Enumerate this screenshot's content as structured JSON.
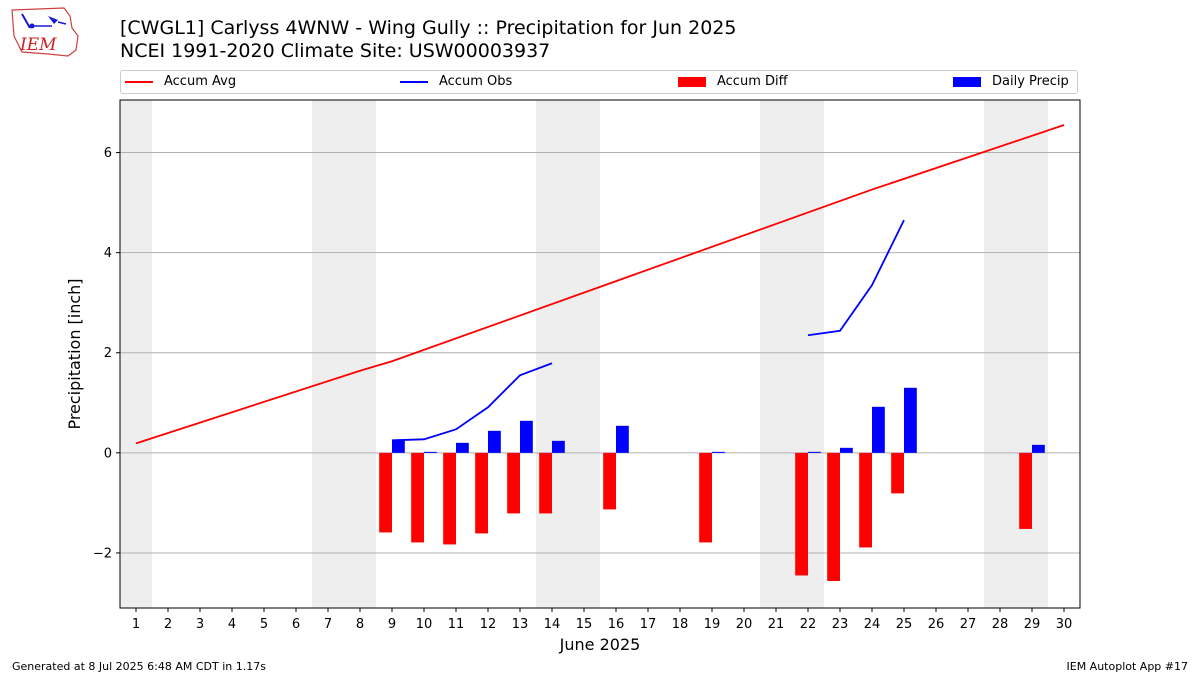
{
  "logo_text": "IEM",
  "chart_data": {
    "type": "bar",
    "title": "[CWGL1] Carlyss 4WNW - Wing Gully :: Precipitation for Jun 2025",
    "subtitle": "NCEI 1991-2020 Climate Site: USW00003937",
    "xlabel": "June 2025",
    "ylabel": "Precipitation [inch]",
    "x": [
      1,
      2,
      3,
      4,
      5,
      6,
      7,
      8,
      9,
      10,
      11,
      12,
      13,
      14,
      15,
      16,
      17,
      18,
      19,
      20,
      21,
      22,
      23,
      24,
      25,
      26,
      27,
      28,
      29,
      30
    ],
    "xlim": [
      0.5,
      30.5
    ],
    "ylim": [
      -3.1,
      7.05
    ],
    "yticks": [
      -2,
      0,
      2,
      4,
      6
    ],
    "ytick_labels": [
      "−2",
      "0",
      "2",
      "4",
      "6"
    ],
    "grid": "horizontal",
    "legend_position": "top",
    "weekend_shading": [
      [
        0.5,
        1.5
      ],
      [
        6.5,
        8.5
      ],
      [
        13.5,
        15.5
      ],
      [
        20.5,
        22.5
      ],
      [
        27.5,
        29.5
      ]
    ],
    "series": [
      {
        "name": "Accum Avg",
        "type": "line",
        "color": "#ff0000",
        "x": [
          1,
          8,
          9,
          24,
          30
        ],
        "values": [
          0.19,
          1.64,
          1.83,
          5.26,
          6.55
        ]
      },
      {
        "name": "Accum Obs",
        "type": "line",
        "color": "#0000ff",
        "segments": [
          {
            "x": [
              9,
              10,
              11,
              12,
              13,
              14
            ],
            "values": [
              0.25,
              0.27,
              0.47,
              0.91,
              1.55,
              1.79
            ]
          },
          {
            "x": [
              22,
              23,
              24,
              25
            ],
            "values": [
              2.35,
              2.44,
              3.35,
              4.65
            ]
          }
        ]
      },
      {
        "name": "Accum Diff",
        "type": "bar",
        "color": "#ff0000",
        "x": [
          9,
          10,
          11,
          12,
          13,
          14,
          16,
          19,
          22,
          23,
          24,
          25,
          29
        ],
        "values": [
          -1.59,
          -1.79,
          -1.83,
          -1.61,
          -1.21,
          -1.21,
          -1.13,
          -1.79,
          -2.45,
          -2.56,
          -1.89,
          -0.81,
          -1.52
        ]
      },
      {
        "name": "Daily Precip",
        "type": "bar",
        "color": "#0000ff",
        "x": [
          9,
          10,
          11,
          12,
          13,
          14,
          16,
          19,
          22,
          23,
          24,
          25,
          29
        ],
        "values": [
          0.25,
          0.02,
          0.2,
          0.44,
          0.64,
          0.24,
          0.54,
          0.02,
          0.02,
          0.1,
          0.92,
          1.3,
          0.16
        ]
      }
    ]
  },
  "footer": {
    "left": "Generated at 8 Jul 2025 6:48 AM CDT in 1.17s",
    "right": "IEM Autoplot App #17"
  }
}
